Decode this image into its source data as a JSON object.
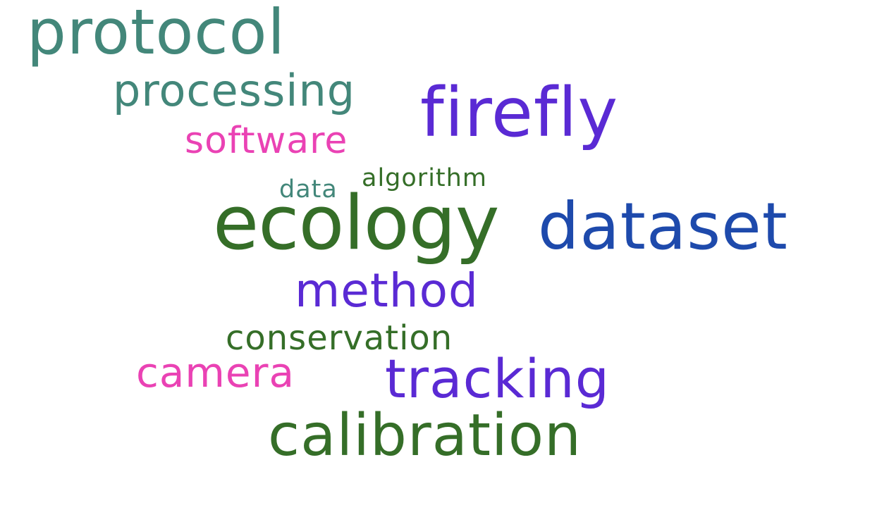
{
  "cloud": {
    "words": {
      "protocol": {
        "text": "protocol",
        "color": "#43877a"
      },
      "processing": {
        "text": "processing",
        "color": "#43877a"
      },
      "firefly": {
        "text": "firefly",
        "color": "#5a2ad4"
      },
      "software": {
        "text": "software",
        "color": "#ea42b4"
      },
      "algorithm": {
        "text": "algorithm",
        "color": "#356e28"
      },
      "data": {
        "text": "data",
        "color": "#43877a"
      },
      "ecology": {
        "text": "ecology",
        "color": "#356e28"
      },
      "dataset": {
        "text": "dataset",
        "color": "#1e4aac"
      },
      "method": {
        "text": "method",
        "color": "#5a2ad4"
      },
      "conservation": {
        "text": "conservation",
        "color": "#356e28"
      },
      "camera": {
        "text": "camera",
        "color": "#ea42b4"
      },
      "tracking": {
        "text": "tracking",
        "color": "#5a2ad4"
      },
      "calibration": {
        "text": "calibration",
        "color": "#356e28"
      }
    }
  }
}
